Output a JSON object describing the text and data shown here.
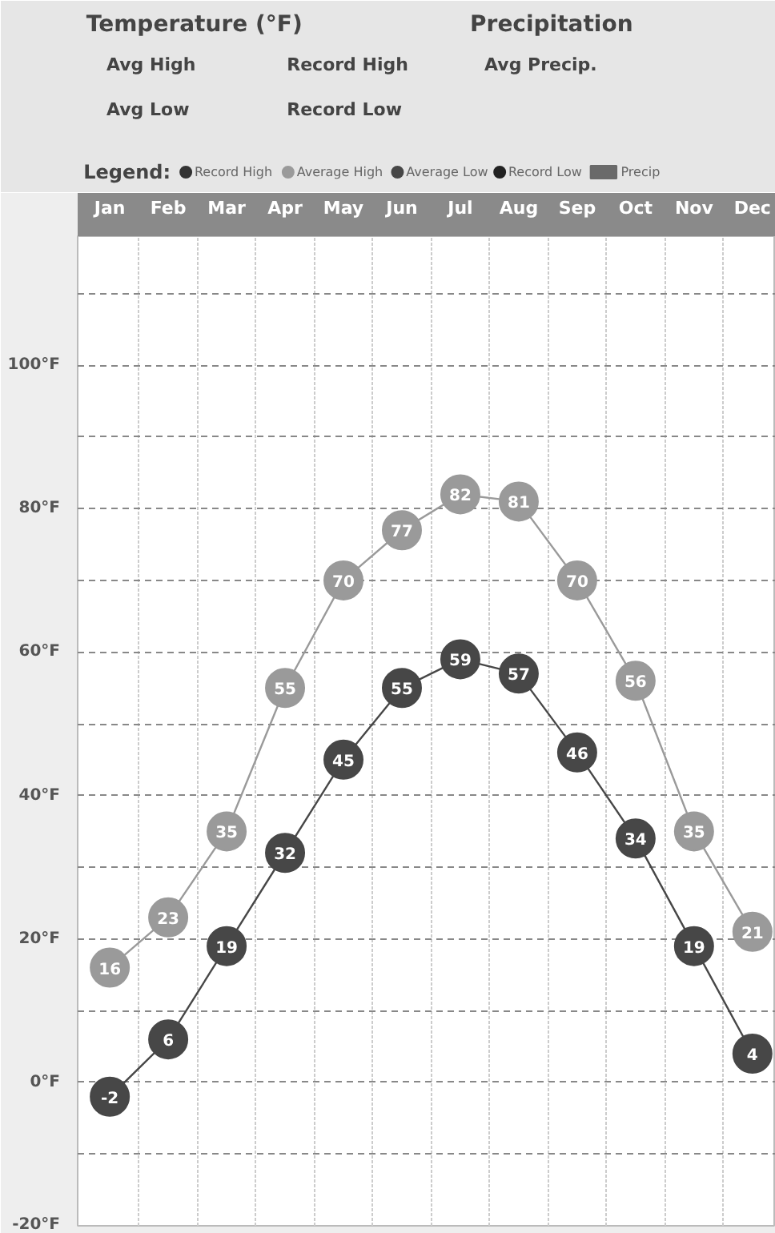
{
  "chart_data": {
    "type": "line",
    "title": "Temperature (°F)",
    "annotations": [
      "Avg High",
      "Record High",
      "Avg Low",
      "Record Low",
      "Precipitation",
      "Avg Precip."
    ],
    "legend_title": "Legend:",
    "legend": "top",
    "categories": [
      "Jan",
      "Feb",
      "Mar",
      "Apr",
      "May",
      "Jun",
      "Jul",
      "Aug",
      "Sep",
      "Oct",
      "Nov",
      "Dec"
    ],
    "series": [
      {
        "name": "Record High",
        "color": "#333333",
        "values": [
          null,
          null,
          null,
          null,
          null,
          null,
          null,
          null,
          null,
          null,
          null,
          null
        ]
      },
      {
        "name": "Average High",
        "color": "#9a9a9a",
        "values": [
          16,
          23,
          35,
          55,
          70,
          77,
          82,
          81,
          70,
          56,
          35,
          21
        ]
      },
      {
        "name": "Average Low",
        "color": "#474747",
        "values": [
          -2,
          6,
          19,
          32,
          45,
          55,
          59,
          57,
          46,
          34,
          19,
          4
        ]
      },
      {
        "name": "Record Low",
        "color": "#222222",
        "values": [
          null,
          null,
          null,
          null,
          null,
          null,
          null,
          null,
          null,
          null,
          null,
          null
        ]
      },
      {
        "name": "Precip",
        "type": "bar",
        "color": "#6a6a6a",
        "values": [
          null,
          null,
          null,
          null,
          null,
          null,
          null,
          null,
          null,
          null,
          null,
          null
        ]
      }
    ],
    "ylim": [
      -20,
      118
    ],
    "yticks": [
      {
        "value": -20,
        "label": "-20°F"
      },
      {
        "value": -10,
        "label": null
      },
      {
        "value": 0,
        "label": "0°F"
      },
      {
        "value": 10,
        "label": null
      },
      {
        "value": 20,
        "label": "20°F"
      },
      {
        "value": 30,
        "label": null
      },
      {
        "value": 40,
        "label": "40°F"
      },
      {
        "value": 50,
        "label": null
      },
      {
        "value": 60,
        "label": "60°F"
      },
      {
        "value": 70,
        "label": null
      },
      {
        "value": 80,
        "label": "80°F"
      },
      {
        "value": 90,
        "label": null
      },
      {
        "value": 100,
        "label": "100°F"
      },
      {
        "value": 110,
        "label": null
      }
    ],
    "grid": true,
    "marker": "circle",
    "line_style": "solid",
    "data_labels": true
  }
}
